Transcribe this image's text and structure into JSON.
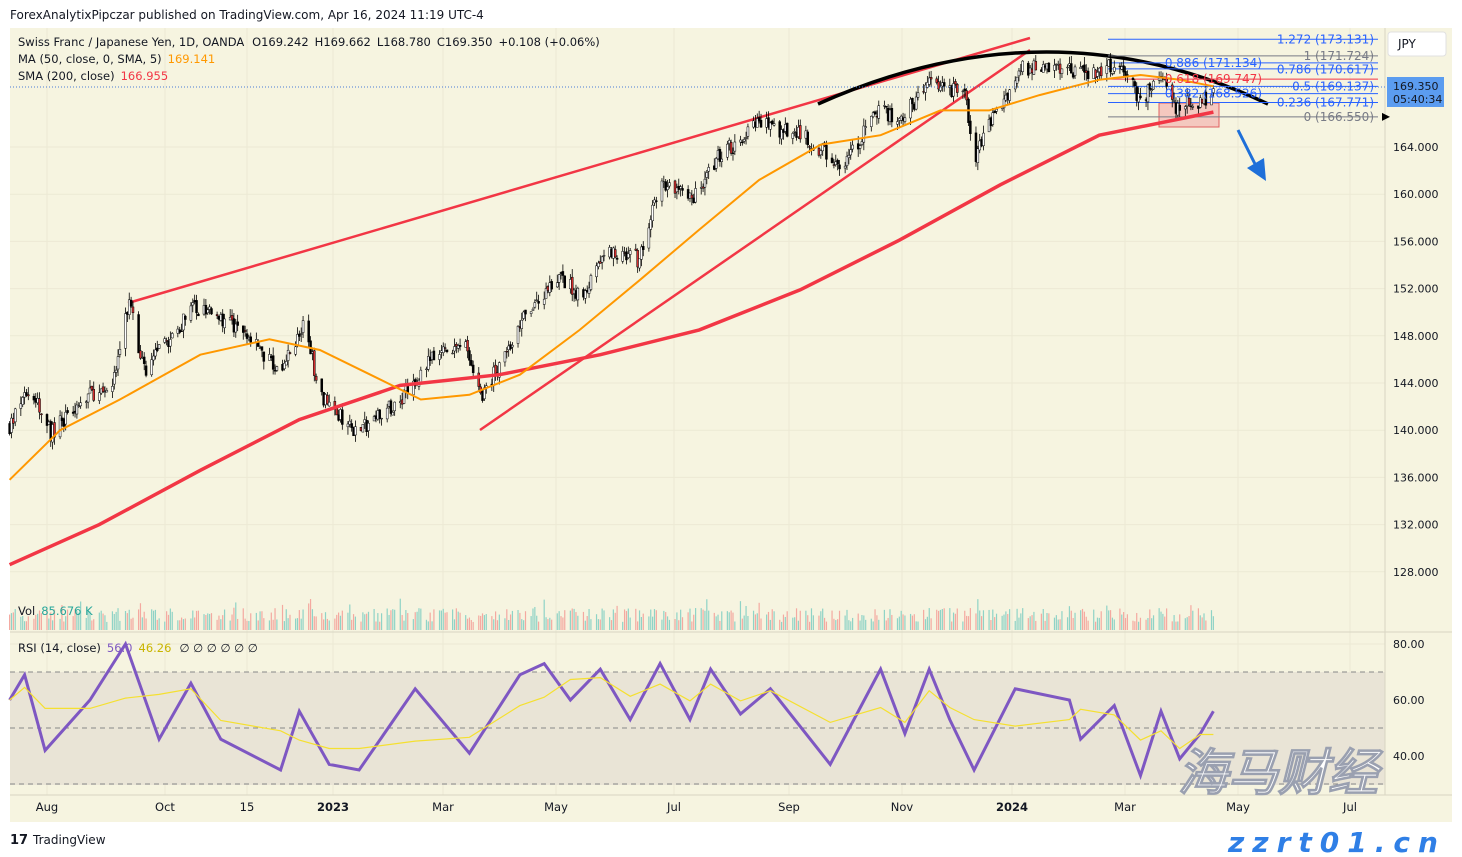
{
  "header": {
    "published": "ForexAnalytixPipczar published on TradingView.com, Apr 16, 2024 11:19 UTC-4"
  },
  "legend": {
    "symbol": "Swiss Franc / Japanese Yen, 1D, OANDA",
    "open": "O169.242",
    "high": "H169.662",
    "low": "L168.780",
    "close": "C169.350",
    "change": "+0.108 (+0.06%)",
    "ma_label": "MA (50, close, 0, SMA, 5)",
    "ma_value": "169.141",
    "sma_label": "SMA (200, close)",
    "sma_value": "166.955",
    "vol_label": "Vol",
    "vol_value": "85.676 K",
    "rsi_label": "RSI (14, close)",
    "rsi_value": "56.0",
    "rsi_ma_value": "46.26",
    "rsi_extra": "∅ ∅ ∅ ∅ ∅ ∅"
  },
  "price_axis": {
    "currency": "JPY",
    "last_price": "169.350",
    "countdown": "05:40:34",
    "ticks": [
      "164.000",
      "160.000",
      "156.000",
      "152.000",
      "148.000",
      "144.000",
      "140.000",
      "136.000",
      "132.000",
      "128.000"
    ]
  },
  "rsi_axis": {
    "ticks": [
      "80.00",
      "60.00",
      "40.00"
    ]
  },
  "time_axis": {
    "ticks": [
      "Aug",
      "Oct",
      "15",
      "2023",
      "Mar",
      "May",
      "Jul",
      "Sep",
      "Nov",
      "2024",
      "Mar",
      "May",
      "Jul"
    ]
  },
  "fib_levels": [
    {
      "label": "1.272 (173.131)",
      "price": 173.131,
      "color": "#2962ff"
    },
    {
      "label": "1 (171.724)",
      "price": 171.724,
      "color": "#787b86"
    },
    {
      "label": "0.886 (171.134)",
      "price": 171.134,
      "color": "#2962ff"
    },
    {
      "label": "0.786 (170.617)",
      "price": 170.617,
      "color": "#2962ff"
    },
    {
      "label": "0.618 (169.747)",
      "price": 169.747,
      "color": "#f23645"
    },
    {
      "label": "0.5 (169.137)",
      "price": 169.137,
      "color": "#2962ff"
    },
    {
      "label": "0.382 (168.526)",
      "price": 168.526,
      "color": "#2962ff"
    },
    {
      "label": "0.236 (167.771)",
      "price": 167.771,
      "color": "#2962ff"
    },
    {
      "label": "0 (166.550)",
      "price": 166.55,
      "color": "#787b86"
    }
  ],
  "colors": {
    "background": "#f6f4e0",
    "ma50": "#ff9800",
    "sma200": "#f23645",
    "rsi": "#7e57c2",
    "rsi_ma": "#f5e030",
    "accent": "#2962ff",
    "arrow": "#1e6fd9"
  },
  "footer": {
    "brand": "TradingView"
  },
  "watermark": {
    "text": "海马财经",
    "url": "zzrt01.cn"
  },
  "chart_data": {
    "type": "candlestick",
    "symbol": "CHFJPY",
    "interval": "1D",
    "ylim": [
      126,
      174
    ],
    "grid": true,
    "close_path": [
      [
        "2022-07-12",
        140.4
      ],
      [
        "2022-07-23",
        143.4
      ],
      [
        "2022-08-03",
        139.8
      ],
      [
        "2022-08-24",
        143.0
      ],
      [
        "2022-09-06",
        144.4
      ],
      [
        "2022-09-14",
        151.0
      ],
      [
        "2022-09-22",
        145.0
      ],
      [
        "2022-10-19",
        150.5
      ],
      [
        "2022-11-12",
        148.5
      ],
      [
        "2022-12-04",
        145.0
      ],
      [
        "2022-12-17",
        149.0
      ],
      [
        "2022-12-25",
        143.0
      ],
      [
        "2023-01-13",
        139.8
      ],
      [
        "2023-02-06",
        142.5
      ],
      [
        "2023-02-22",
        146.0
      ],
      [
        "2023-03-13",
        147.5
      ],
      [
        "2023-03-21",
        142.5
      ],
      [
        "2023-04-11",
        149.0
      ],
      [
        "2023-05-02",
        153.0
      ],
      [
        "2023-05-13",
        151.5
      ],
      [
        "2023-05-29",
        155.0
      ],
      [
        "2023-06-14",
        154.5
      ],
      [
        "2023-06-25",
        161.0
      ],
      [
        "2023-07-11",
        159.5
      ],
      [
        "2023-07-27",
        163.3
      ],
      [
        "2023-08-17",
        166.0
      ],
      [
        "2023-09-08",
        165.0
      ],
      [
        "2023-10-02",
        162.5
      ],
      [
        "2023-10-21",
        167.5
      ],
      [
        "2023-10-31",
        166.0
      ],
      [
        "2023-11-16",
        169.7
      ],
      [
        "2023-12-05",
        168.4
      ],
      [
        "2023-12-10",
        162.9
      ],
      [
        "2023-12-21",
        166.7
      ],
      [
        "2024-01-04",
        170.6
      ],
      [
        "2024-01-17",
        171.0
      ],
      [
        "2024-02-05",
        170.2
      ],
      [
        "2024-02-26",
        171.0
      ],
      [
        "2024-03-08",
        168.0
      ],
      [
        "2024-03-19",
        170.2
      ],
      [
        "2024-03-27",
        167.5
      ],
      [
        "2024-04-12",
        168.0
      ],
      [
        "2024-04-16",
        169.35
      ]
    ],
    "ma50": [
      [
        "2022-07-12",
        135.8
      ],
      [
        "2022-08-08",
        140.0
      ],
      [
        "2022-09-09",
        142.6
      ],
      [
        "2022-10-22",
        146.4
      ],
      [
        "2022-11-28",
        147.7
      ],
      [
        "2022-12-25",
        146.8
      ],
      [
        "2023-01-21",
        144.7
      ],
      [
        "2023-02-17",
        142.6
      ],
      [
        "2023-03-15",
        143.0
      ],
      [
        "2023-04-11",
        144.7
      ],
      [
        "2023-05-13",
        148.5
      ],
      [
        "2023-06-14",
        152.7
      ],
      [
        "2023-07-16",
        157.0
      ],
      [
        "2023-08-17",
        161.2
      ],
      [
        "2023-09-19",
        164.2
      ],
      [
        "2023-10-21",
        165.0
      ],
      [
        "2023-11-22",
        167.1
      ],
      [
        "2023-12-18",
        167.1
      ],
      [
        "2024-01-14",
        168.4
      ],
      [
        "2024-02-15",
        169.7
      ],
      [
        "2024-03-08",
        170.1
      ],
      [
        "2024-03-29",
        169.7
      ],
      [
        "2024-04-16",
        169.141
      ]
    ],
    "sma200": [
      [
        "2022-07-12",
        128.6
      ],
      [
        "2022-08-29",
        132.0
      ],
      [
        "2022-10-22",
        136.6
      ],
      [
        "2022-12-14",
        140.9
      ],
      [
        "2023-02-06",
        143.8
      ],
      [
        "2023-03-31",
        144.7
      ],
      [
        "2023-05-24",
        146.4
      ],
      [
        "2023-07-16",
        148.5
      ],
      [
        "2023-09-08",
        151.9
      ],
      [
        "2023-10-31",
        156.1
      ],
      [
        "2023-12-24",
        160.8
      ],
      [
        "2024-02-15",
        165.0
      ],
      [
        "2024-04-16",
        166.955
      ]
    ],
    "rsi": [
      [
        "2022-07-12",
        60
      ],
      [
        "2022-07-20",
        69
      ],
      [
        "2022-07-31",
        42
      ],
      [
        "2022-08-24",
        60
      ],
      [
        "2022-09-12",
        80
      ],
      [
        "2022-09-30",
        46
      ],
      [
        "2022-10-17",
        66
      ],
      [
        "2022-11-02",
        46
      ],
      [
        "2022-12-04",
        35
      ],
      [
        "2022-12-14",
        56
      ],
      [
        "2022-12-30",
        37
      ],
      [
        "2023-01-15",
        35
      ],
      [
        "2023-02-14",
        64
      ],
      [
        "2023-03-15",
        41
      ],
      [
        "2023-04-11",
        69
      ],
      [
        "2023-04-24",
        73
      ],
      [
        "2023-05-08",
        60
      ],
      [
        "2023-05-24",
        71
      ],
      [
        "2023-06-09",
        53
      ],
      [
        "2023-06-25",
        73
      ],
      [
        "2023-07-11",
        53
      ],
      [
        "2023-07-22",
        71
      ],
      [
        "2023-08-07",
        55
      ],
      [
        "2023-08-23",
        64
      ],
      [
        "2023-09-24",
        37
      ],
      [
        "2023-10-21",
        71
      ],
      [
        "2023-11-03",
        48
      ],
      [
        "2023-11-16",
        71
      ],
      [
        "2023-11-27",
        53
      ],
      [
        "2023-12-10",
        35
      ],
      [
        "2024-01-01",
        64
      ],
      [
        "2024-01-30",
        60
      ],
      [
        "2024-02-05",
        46
      ],
      [
        "2024-02-23",
        58
      ],
      [
        "2024-03-08",
        33
      ],
      [
        "2024-03-19",
        56
      ],
      [
        "2024-03-29",
        39
      ],
      [
        "2024-04-09",
        48
      ],
      [
        "2024-04-16",
        56
      ]
    ],
    "rsi_levels": [
      70,
      50,
      30
    ],
    "rsi_ylim": [
      25,
      85
    ]
  }
}
